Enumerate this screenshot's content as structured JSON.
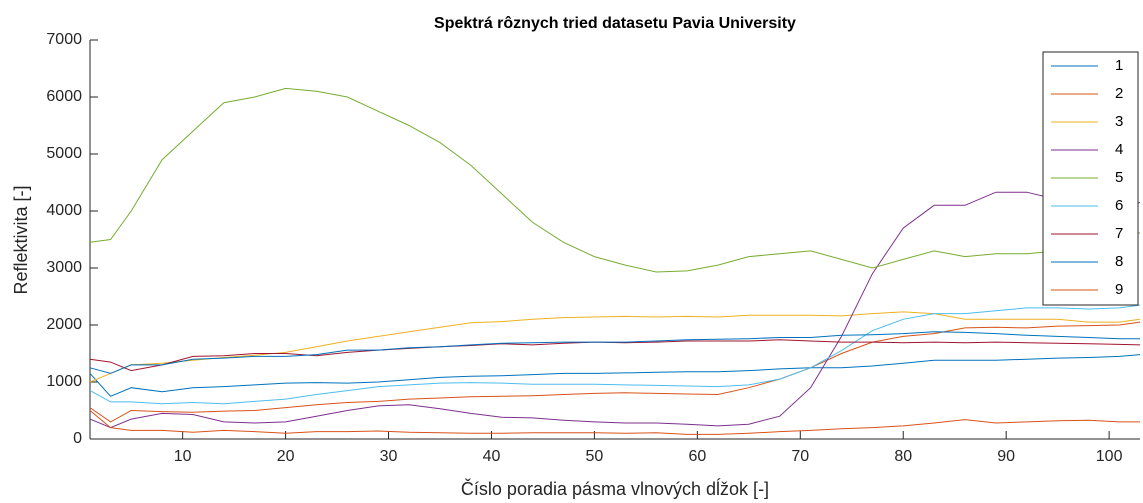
{
  "chart_data": {
    "type": "line",
    "title": "Spektrá rôznych tried datasetu Pavia University",
    "xlabel": "Číslo poradia pásma vlnových dĺžok [-]",
    "ylabel": "Reflektivita [-]",
    "x": [
      1,
      3,
      5,
      8,
      11,
      14,
      17,
      20,
      23,
      26,
      29,
      32,
      35,
      38,
      41,
      44,
      47,
      50,
      53,
      56,
      59,
      62,
      65,
      68,
      71,
      74,
      77,
      80,
      83,
      86,
      89,
      92,
      95,
      98,
      101,
      103
    ],
    "xlim": [
      1,
      103
    ],
    "xticks": [
      10,
      20,
      30,
      40,
      50,
      60,
      70,
      80,
      90,
      100
    ],
    "ylim": [
      0,
      7000
    ],
    "yticks": [
      0,
      1000,
      2000,
      3000,
      4000,
      5000,
      6000,
      7000
    ],
    "legend": "upper right",
    "series": [
      {
        "name": "1",
        "color": "#0072BD",
        "values": [
          1150,
          750,
          900,
          830,
          900,
          920,
          950,
          980,
          990,
          980,
          1000,
          1040,
          1080,
          1100,
          1110,
          1130,
          1150,
          1150,
          1160,
          1170,
          1180,
          1180,
          1200,
          1230,
          1250,
          1250,
          1280,
          1330,
          1380,
          1380,
          1380,
          1400,
          1420,
          1430,
          1450,
          1480
        ]
      },
      {
        "name": "2",
        "color": "#D95319",
        "values": [
          550,
          300,
          500,
          480,
          470,
          490,
          500,
          550,
          600,
          640,
          660,
          700,
          720,
          740,
          750,
          760,
          780,
          800,
          810,
          800,
          790,
          780,
          900,
          1050,
          1250,
          1500,
          1700,
          1800,
          1850,
          1950,
          1960,
          1950,
          1980,
          1990,
          2000,
          2050
        ]
      },
      {
        "name": "3",
        "color": "#EDB120",
        "values": [
          1000,
          1150,
          1300,
          1330,
          1380,
          1430,
          1470,
          1520,
          1620,
          1720,
          1800,
          1880,
          1960,
          2040,
          2060,
          2100,
          2130,
          2140,
          2150,
          2140,
          2150,
          2140,
          2170,
          2170,
          2170,
          2160,
          2200,
          2230,
          2200,
          2100,
          2100,
          2100,
          2100,
          2050,
          2050,
          2100
        ]
      },
      {
        "name": "4",
        "color": "#7E2F8E",
        "values": [
          350,
          200,
          350,
          450,
          430,
          300,
          280,
          300,
          400,
          500,
          580,
          600,
          530,
          450,
          380,
          370,
          330,
          300,
          280,
          280,
          260,
          230,
          260,
          400,
          900,
          1800,
          2900,
          3700,
          4100,
          4100,
          4330,
          4330,
          4200,
          4150,
          4000,
          4150
        ]
      },
      {
        "name": "5",
        "color": "#77AC30",
        "values": [
          3450,
          3500,
          4000,
          4900,
          5400,
          5900,
          6000,
          6150,
          6100,
          6000,
          5750,
          5500,
          5200,
          4800,
          4300,
          3800,
          3450,
          3200,
          3050,
          2930,
          2950,
          3050,
          3200,
          3250,
          3300,
          3150,
          3000,
          3150,
          3300,
          3200,
          3250,
          3250,
          3300,
          3350,
          3500,
          3620
        ]
      },
      {
        "name": "6",
        "color": "#4DBEEE",
        "values": [
          850,
          650,
          650,
          620,
          640,
          620,
          660,
          700,
          780,
          850,
          920,
          950,
          980,
          990,
          980,
          960,
          960,
          960,
          950,
          940,
          930,
          920,
          950,
          1050,
          1250,
          1550,
          1900,
          2100,
          2200,
          2200,
          2250,
          2300,
          2300,
          2280,
          2300,
          2350
        ]
      },
      {
        "name": "7",
        "color": "#A2142F",
        "values": [
          1400,
          1350,
          1200,
          1300,
          1450,
          1460,
          1500,
          1500,
          1460,
          1520,
          1560,
          1590,
          1620,
          1640,
          1670,
          1650,
          1680,
          1700,
          1690,
          1700,
          1720,
          1720,
          1720,
          1740,
          1720,
          1700,
          1700,
          1690,
          1700,
          1690,
          1700,
          1690,
          1680,
          1670,
          1660,
          1650
        ]
      },
      {
        "name": "8",
        "color": "#0072BD",
        "values": [
          1250,
          1150,
          1300,
          1300,
          1400,
          1420,
          1450,
          1450,
          1480,
          1560,
          1560,
          1600,
          1620,
          1650,
          1680,
          1690,
          1700,
          1700,
          1700,
          1720,
          1740,
          1750,
          1760,
          1780,
          1780,
          1820,
          1830,
          1850,
          1880,
          1870,
          1850,
          1820,
          1800,
          1780,
          1760,
          1760
        ]
      },
      {
        "name": "9",
        "color": "#D95319",
        "values": [
          500,
          200,
          150,
          150,
          120,
          150,
          130,
          100,
          130,
          130,
          140,
          120,
          110,
          100,
          100,
          110,
          110,
          110,
          100,
          110,
          80,
          80,
          100,
          130,
          150,
          180,
          200,
          230,
          280,
          340,
          280,
          300,
          320,
          330,
          300,
          300
        ]
      }
    ]
  }
}
